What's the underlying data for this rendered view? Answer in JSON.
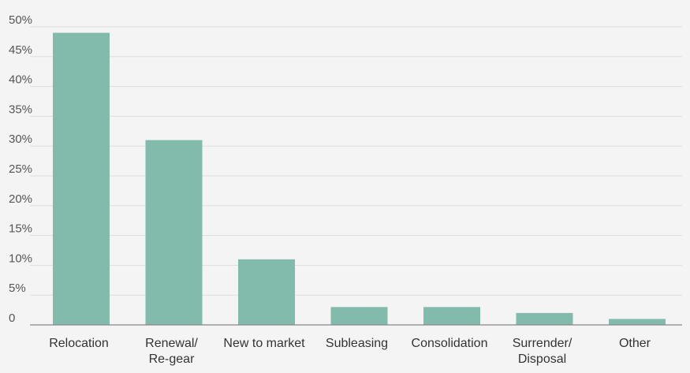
{
  "chart_data": {
    "type": "bar",
    "title": "",
    "xlabel": "",
    "ylabel": "",
    "categories": [
      [
        "Relocation"
      ],
      [
        "Renewal/",
        "Re-gear"
      ],
      [
        "New to market"
      ],
      [
        "Subleasing"
      ],
      [
        "Consolidation"
      ],
      [
        "Surrender/",
        "Disposal"
      ],
      [
        "Other"
      ]
    ],
    "values": [
      49,
      31,
      11,
      3,
      3,
      2,
      1
    ],
    "ylim": [
      0,
      50
    ],
    "yticks": [
      0,
      5,
      10,
      15,
      20,
      25,
      30,
      35,
      40,
      45,
      50
    ],
    "ytick_labels": [
      "0",
      "5%",
      "10%",
      "15%",
      "20%",
      "25%",
      "30%",
      "35%",
      "40%",
      "45%",
      "50%"
    ],
    "grid": true,
    "bar_color": "#82bbab",
    "legend": "none"
  }
}
